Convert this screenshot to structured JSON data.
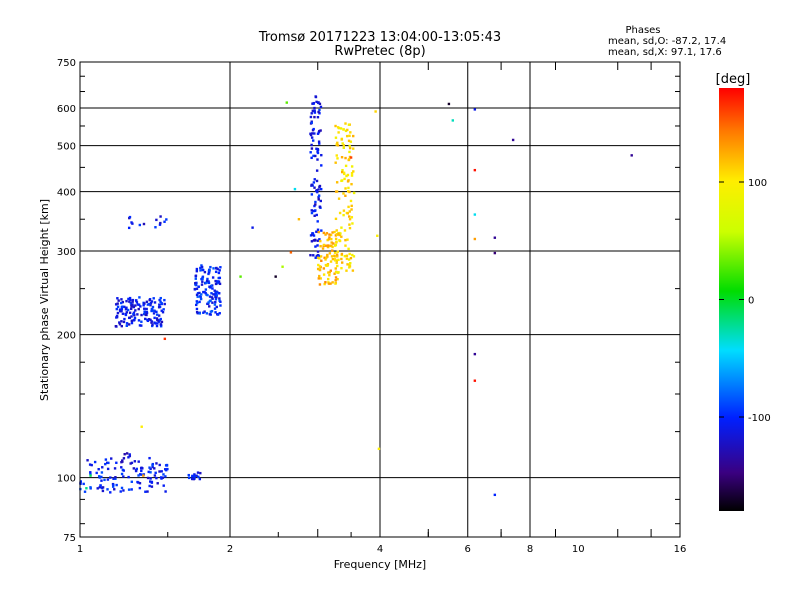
{
  "chart_data": {
    "type": "scatter",
    "title": "Tromsø 20171223 13:04:00-13:05:43",
    "subtitle": "RwPretec (8p)",
    "xlabel": "Frequency [MHz]",
    "ylabel": "Stationary phase Virtual Height [km]",
    "xscale": "log",
    "yscale": "log",
    "xlim": [
      1,
      16
    ],
    "ylim": [
      75,
      750
    ],
    "x_ticks": [
      1,
      2,
      4,
      6,
      8,
      10,
      16
    ],
    "y_ticks": [
      75,
      100,
      200,
      300,
      400,
      500,
      600,
      750
    ],
    "vertical_grid": [
      2,
      4,
      6,
      8
    ],
    "horizontal_grid": [
      100,
      200,
      300,
      400,
      500,
      600
    ],
    "phase_stats": {
      "heading": "Phases",
      "line_o": "mean, sd,O: -87.2, 17.4",
      "line_x": "mean, sd,X:  97.1, 17.6"
    },
    "colorbar": {
      "label": "[deg]",
      "range": [
        -180,
        180
      ],
      "ticks": [
        100,
        0,
        -100
      ],
      "colormap": "rainbow"
    },
    "clusters": [
      {
        "f": [
          1.0,
          1.5
        ],
        "h": [
          93,
          110
        ],
        "phase": -105,
        "n": 120
      },
      {
        "f": [
          1.21,
          1.28
        ],
        "h": [
          107,
          113
        ],
        "phase": -115,
        "n": 10
      },
      {
        "f": [
          1.65,
          1.75
        ],
        "h": [
          99,
          103
        ],
        "phase": -110,
        "n": 14
      },
      {
        "f": [
          1.18,
          1.48
        ],
        "h": [
          208,
          240
        ],
        "phase": -108,
        "n": 150
      },
      {
        "f": [
          1.7,
          1.92
        ],
        "h": [
          220,
          280
        ],
        "phase": -100,
        "n": 130
      },
      {
        "f": [
          1.22,
          1.5
        ],
        "h": [
          335,
          355
        ],
        "phase": -112,
        "n": 14
      },
      {
        "f": [
          2.9,
          3.05
        ],
        "h": [
          290,
          640
        ],
        "phase": -110,
        "n": 110
      },
      {
        "f": [
          3.0,
          3.3
        ],
        "h": [
          255,
          330
        ],
        "phase": 120,
        "n": 90
      },
      {
        "f": [
          3.25,
          3.55
        ],
        "h": [
          270,
          560
        ],
        "phase": 105,
        "n": 130
      }
    ],
    "points": [
      {
        "x": 1.03,
        "y": 95,
        "phase": -20
      },
      {
        "x": 1.05,
        "y": 101,
        "phase": -10
      },
      {
        "x": 1.33,
        "y": 128,
        "phase": 100
      },
      {
        "x": 1.34,
        "y": 101,
        "phase": 130
      },
      {
        "x": 1.48,
        "y": 196,
        "phase": 165
      },
      {
        "x": 2.1,
        "y": 265,
        "phase": 30
      },
      {
        "x": 2.22,
        "y": 336,
        "phase": -110
      },
      {
        "x": 2.47,
        "y": 265,
        "phase": -170
      },
      {
        "x": 2.55,
        "y": 278,
        "phase": 50
      },
      {
        "x": 2.6,
        "y": 616,
        "phase": 30
      },
      {
        "x": 2.7,
        "y": 405,
        "phase": -40
      },
      {
        "x": 2.65,
        "y": 298,
        "phase": 150
      },
      {
        "x": 2.75,
        "y": 350,
        "phase": 120
      },
      {
        "x": 3.5,
        "y": 472,
        "phase": 160
      },
      {
        "x": 3.92,
        "y": 590,
        "phase": 110
      },
      {
        "x": 3.95,
        "y": 323,
        "phase": 100
      },
      {
        "x": 3.98,
        "y": 115,
        "phase": 100
      },
      {
        "x": 5.5,
        "y": 612,
        "phase": -170
      },
      {
        "x": 5.6,
        "y": 565,
        "phase": -30
      },
      {
        "x": 6.2,
        "y": 596,
        "phase": -110
      },
      {
        "x": 6.2,
        "y": 444,
        "phase": 175
      },
      {
        "x": 6.2,
        "y": 358,
        "phase": -40
      },
      {
        "x": 6.2,
        "y": 318,
        "phase": 130
      },
      {
        "x": 6.2,
        "y": 182,
        "phase": -140
      },
      {
        "x": 6.2,
        "y": 160,
        "phase": 175
      },
      {
        "x": 6.8,
        "y": 320,
        "phase": -140
      },
      {
        "x": 6.8,
        "y": 297,
        "phase": -150
      },
      {
        "x": 6.8,
        "y": 92,
        "phase": -100
      },
      {
        "x": 7.4,
        "y": 514,
        "phase": -140
      },
      {
        "x": 12.8,
        "y": 477,
        "phase": -140
      }
    ]
  }
}
